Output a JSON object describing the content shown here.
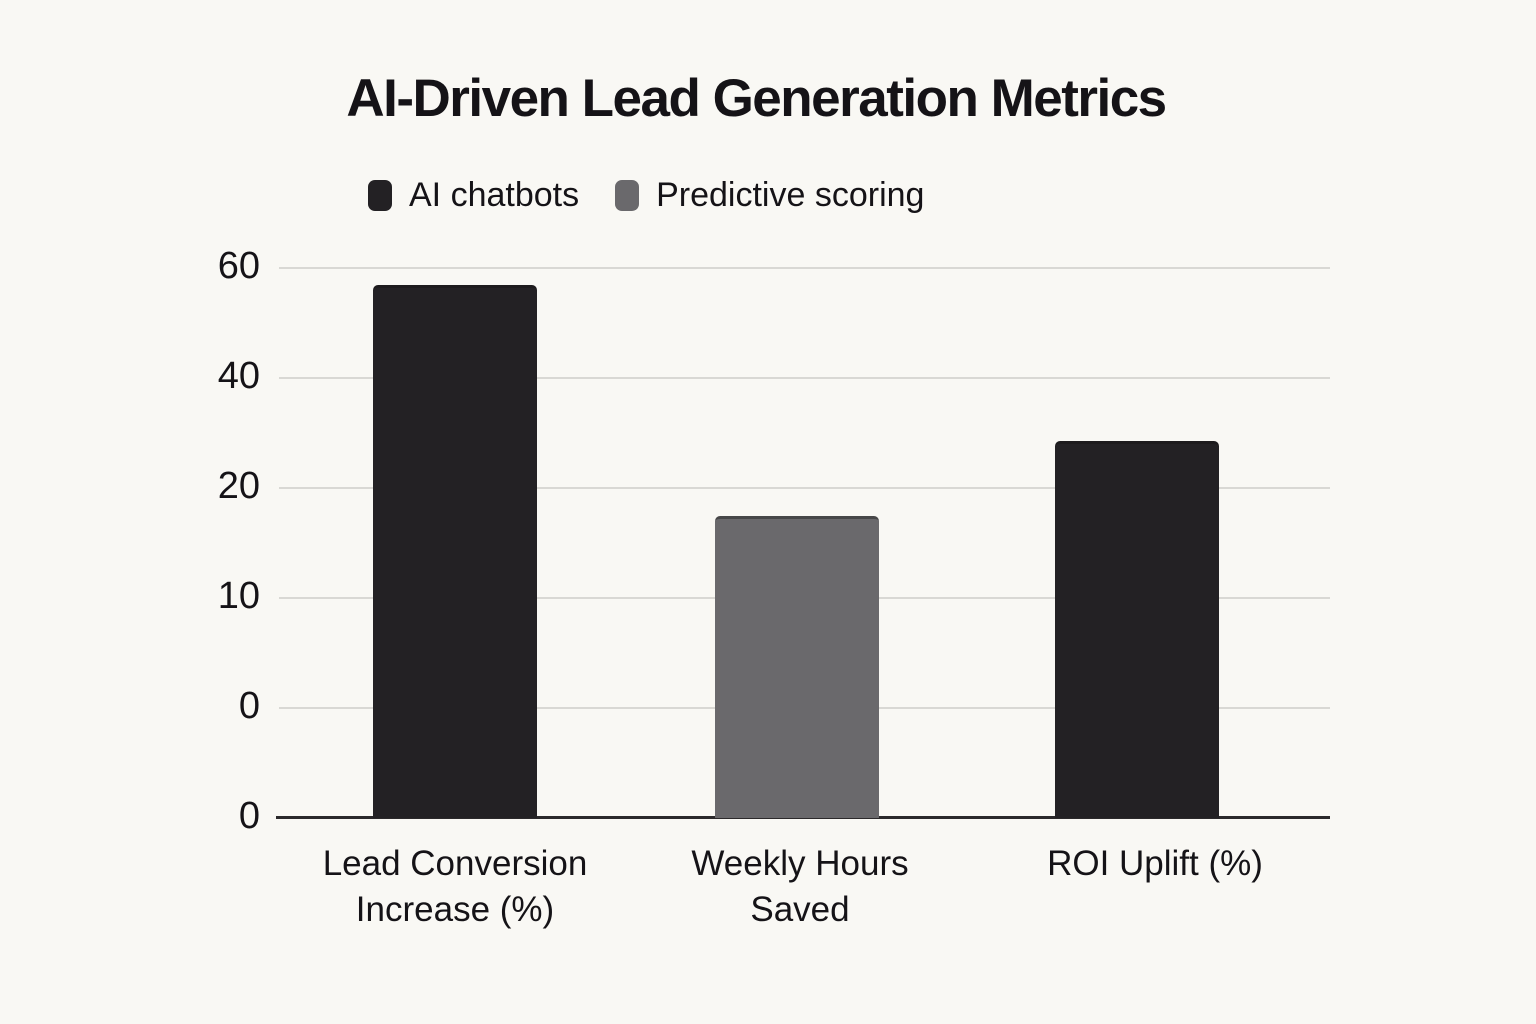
{
  "chart_data": {
    "type": "bar",
    "title": "AI-Driven Lead Generation Metrics",
    "legend_position": "top-left",
    "grid": true,
    "series": [
      {
        "name": "AI chatbots",
        "color": "#232124"
      },
      {
        "name": "Predictive scoring",
        "color": "#6a696c"
      }
    ],
    "categories": [
      "Lead Conversion Increase (%)",
      "Weekly Hours Saved",
      "ROI Uplift (%)"
    ],
    "category_label_lines": [
      [
        "Lead Conversion",
        "Increase (%)"
      ],
      [
        "Weekly Hours",
        "Saved"
      ],
      [
        "ROI Uplift (%)"
      ]
    ],
    "bars": [
      {
        "category": "Lead Conversion Increase (%)",
        "series": "AI chatbots",
        "value": 57
      },
      {
        "category": "Weekly Hours Saved",
        "series": "Predictive scoring",
        "value": 17.5
      },
      {
        "category": "ROI Uplift (%)",
        "series": "AI chatbots",
        "value": 28.5
      }
    ],
    "y_axis": {
      "tick_labels_top_to_bottom": [
        "60",
        "40",
        "20",
        "10",
        "0",
        "0"
      ]
    }
  },
  "colors": {
    "background": "#f9f8f4",
    "grid_line": "#d9d8d4",
    "axis_line": "#2b292b",
    "text": "#151317"
  }
}
